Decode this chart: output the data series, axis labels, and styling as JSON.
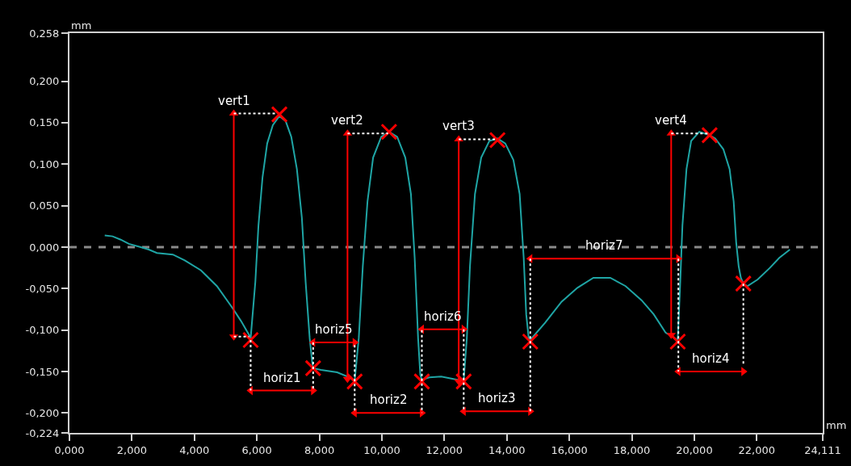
{
  "chart_data": {
    "type": "line",
    "xlabel": "mm",
    "ylabel": "mm",
    "xlim": [
      0,
      24.111
    ],
    "ylim": [
      -0.224,
      0.258
    ],
    "grid": false,
    "xticks": [
      {
        "value": 0,
        "label": "0,000"
      },
      {
        "value": 2,
        "label": "2,000"
      },
      {
        "value": 4,
        "label": "4,000"
      },
      {
        "value": 6,
        "label": "6,000"
      },
      {
        "value": 8,
        "label": "8,000"
      },
      {
        "value": 10,
        "label": "10,000"
      },
      {
        "value": 12,
        "label": "12,000"
      },
      {
        "value": 14,
        "label": "14,000"
      },
      {
        "value": 16,
        "label": "16,000"
      },
      {
        "value": 18,
        "label": "18,000"
      },
      {
        "value": 20,
        "label": "20,000"
      },
      {
        "value": 22,
        "label": "22,000"
      },
      {
        "value": 24.111,
        "label": "24,111"
      }
    ],
    "yticks": [
      {
        "value": 0.258,
        "label": "0,258"
      },
      {
        "value": 0.2,
        "label": "0,200"
      },
      {
        "value": 0.15,
        "label": "0,150"
      },
      {
        "value": 0.1,
        "label": "0,100"
      },
      {
        "value": 0.05,
        "label": "0,050"
      },
      {
        "value": 0,
        "label": "0,000"
      },
      {
        "value": -0.05,
        "label": "-0,050"
      },
      {
        "value": -0.1,
        "label": "-0,100"
      },
      {
        "value": -0.15,
        "label": "-0,150"
      },
      {
        "value": -0.2,
        "label": "-0,200"
      },
      {
        "value": -0.224,
        "label": "-0,224"
      }
    ],
    "ref_lines": [
      {
        "axis": "y",
        "value": 0,
        "color": "#8a8a8a",
        "line_style": "dashed"
      }
    ],
    "series": [
      {
        "color": "#1fa5a5",
        "marker": "none",
        "line_style": "solid",
        "x": [
          1.13,
          1.38,
          1.64,
          1.9,
          2.28,
          2.54,
          2.8,
          3.31,
          3.69,
          4.21,
          4.72,
          5.23,
          5.49,
          5.75,
          5.8,
          5.95,
          6.05,
          6.18,
          6.33,
          6.51,
          6.72,
          6.92,
          7.1,
          7.28,
          7.44,
          7.56,
          7.69,
          7.77,
          7.8,
          8.05,
          8.57,
          8.95,
          9.13,
          9.26,
          9.39,
          9.54,
          9.72,
          9.98,
          10.23,
          10.49,
          10.75,
          10.93,
          11.05,
          11.16,
          11.23,
          11.28,
          11.52,
          11.9,
          12.29,
          12.54,
          12.62,
          12.72,
          12.82,
          12.98,
          13.18,
          13.44,
          13.7,
          13.95,
          14.21,
          14.41,
          14.54,
          14.62,
          14.7,
          14.75,
          15.23,
          15.75,
          16.26,
          16.77,
          17.31,
          17.8,
          18.31,
          18.7,
          19.08,
          19.47,
          19.54,
          19.62,
          19.75,
          19.9,
          20.16,
          20.49,
          20.67,
          20.93,
          21.13,
          21.26,
          21.34,
          21.42,
          21.49,
          21.57,
          21.7,
          22.03,
          22.42,
          22.72,
          23.06
        ],
        "values": [
          0.014,
          0.013,
          0.009,
          0.004,
          0.0,
          -0.003,
          -0.007,
          -0.009,
          -0.016,
          -0.028,
          -0.047,
          -0.074,
          -0.089,
          -0.106,
          -0.11,
          -0.042,
          0.026,
          0.084,
          0.125,
          0.147,
          0.158,
          0.152,
          0.133,
          0.094,
          0.035,
          -0.042,
          -0.11,
          -0.139,
          -0.146,
          -0.148,
          -0.151,
          -0.157,
          -0.161,
          -0.11,
          -0.023,
          0.055,
          0.108,
          0.133,
          0.139,
          0.133,
          0.108,
          0.064,
          -0.013,
          -0.11,
          -0.154,
          -0.16,
          -0.157,
          -0.156,
          -0.159,
          -0.161,
          -0.16,
          -0.11,
          -0.023,
          0.064,
          0.108,
          0.128,
          0.131,
          0.125,
          0.105,
          0.064,
          -0.013,
          -0.081,
          -0.11,
          -0.112,
          -0.091,
          -0.066,
          -0.049,
          -0.037,
          -0.037,
          -0.047,
          -0.064,
          -0.081,
          -0.103,
          -0.112,
          -0.052,
          0.026,
          0.094,
          0.128,
          0.139,
          0.135,
          0.131,
          0.118,
          0.094,
          0.055,
          0.006,
          -0.023,
          -0.037,
          -0.044,
          -0.047,
          -0.039,
          -0.025,
          -0.013,
          -0.003
        ]
      },
      {
        "type": "scatter",
        "color": "#ff0000",
        "marker": "cross",
        "x": [
          5.8,
          6.72,
          7.8,
          9.13,
          10.23,
          11.28,
          12.62,
          13.7,
          14.75,
          19.47,
          20.49,
          21.57
        ],
        "values": [
          -0.112,
          0.16,
          -0.146,
          -0.162,
          0.139,
          -0.162,
          -0.162,
          0.129,
          -0.114,
          -0.114,
          0.135,
          -0.044
        ]
      },
      {
        "color": "#ff0000",
        "marker": "triangle",
        "line_style": "solid",
        "x": [
          5.26,
          5.26
        ],
        "values": [
          -0.108,
          0.161
        ]
      },
      {
        "color": "#ff0000",
        "marker": "triangle",
        "line_style": "solid",
        "x": [
          8.9,
          8.9
        ],
        "values": [
          -0.159,
          0.137
        ]
      },
      {
        "color": "#ff0000",
        "marker": "triangle",
        "line_style": "solid",
        "x": [
          12.46,
          12.46
        ],
        "values": [
          -0.162,
          0.13
        ]
      },
      {
        "color": "#ff0000",
        "marker": "triangle",
        "line_style": "solid",
        "x": [
          19.26,
          19.26
        ],
        "values": [
          -0.106,
          0.137
        ]
      },
      {
        "color": "#ff0000",
        "marker": "triangle",
        "line_style": "solid",
        "x": [
          5.8,
          7.8
        ],
        "values": [
          -0.173,
          -0.173
        ]
      },
      {
        "color": "#ff0000",
        "marker": "triangle",
        "line_style": "solid",
        "x": [
          9.13,
          11.28
        ],
        "values": [
          -0.2,
          -0.2
        ]
      },
      {
        "color": "#ff0000",
        "marker": "triangle",
        "line_style": "solid",
        "x": [
          12.62,
          14.75
        ],
        "values": [
          -0.198,
          -0.198
        ]
      },
      {
        "color": "#ff0000",
        "marker": "triangle",
        "line_style": "solid",
        "x": [
          19.49,
          21.57
        ],
        "values": [
          -0.15,
          -0.15
        ]
      },
      {
        "color": "#ff0000",
        "marker": "triangle",
        "line_style": "solid",
        "x": [
          7.8,
          9.13
        ],
        "values": [
          -0.115,
          -0.115
        ]
      },
      {
        "color": "#ff0000",
        "marker": "triangle",
        "line_style": "solid",
        "x": [
          11.28,
          12.62
        ],
        "values": [
          -0.099,
          -0.099
        ]
      },
      {
        "color": "#ff0000",
        "marker": "triangle",
        "line_style": "solid",
        "x": [
          14.75,
          19.49
        ],
        "values": [
          -0.014,
          -0.014
        ]
      },
      {
        "color": "#ffffff",
        "marker": "none",
        "line_style": "dotted",
        "x": [
          5.26,
          6.64
        ],
        "values": [
          0.161,
          0.161
        ]
      },
      {
        "color": "#ffffff",
        "marker": "none",
        "line_style": "dotted",
        "x": [
          5.26,
          5.75
        ],
        "values": [
          -0.108,
          -0.108
        ]
      },
      {
        "color": "#ffffff",
        "marker": "none",
        "line_style": "dotted",
        "x": [
          8.9,
          10.2
        ],
        "values": [
          0.137,
          0.137
        ]
      },
      {
        "color": "#ffffff",
        "marker": "none",
        "line_style": "dotted",
        "x": [
          12.46,
          13.62
        ],
        "values": [
          0.13,
          0.13
        ]
      },
      {
        "color": "#ffffff",
        "marker": "none",
        "line_style": "dotted",
        "x": [
          19.26,
          20.45
        ],
        "values": [
          0.137,
          0.137
        ]
      },
      {
        "color": "#ffffff",
        "marker": "none",
        "line_style": "dotted",
        "x": [
          5.8,
          5.8
        ],
        "values": [
          -0.112,
          -0.173
        ]
      },
      {
        "color": "#ffffff",
        "marker": "none",
        "line_style": "dotted",
        "x": [
          7.8,
          7.8
        ],
        "values": [
          -0.115,
          -0.173
        ]
      },
      {
        "color": "#ffffff",
        "marker": "none",
        "line_style": "dotted",
        "x": [
          9.13,
          9.13
        ],
        "values": [
          -0.118,
          -0.2
        ]
      },
      {
        "color": "#ffffff",
        "marker": "none",
        "line_style": "dotted",
        "x": [
          11.28,
          11.28
        ],
        "values": [
          -0.1,
          -0.2
        ]
      },
      {
        "color": "#ffffff",
        "marker": "none",
        "line_style": "dotted",
        "x": [
          12.62,
          12.62
        ],
        "values": [
          -0.099,
          -0.198
        ]
      },
      {
        "color": "#ffffff",
        "marker": "none",
        "line_style": "dotted",
        "x": [
          14.75,
          14.75
        ],
        "values": [
          -0.014,
          -0.198
        ]
      },
      {
        "color": "#ffffff",
        "marker": "none",
        "line_style": "dotted",
        "x": [
          19.49,
          19.49
        ],
        "values": [
          -0.014,
          -0.15
        ]
      },
      {
        "color": "#ffffff",
        "marker": "none",
        "line_style": "dotted",
        "x": [
          21.57,
          21.57
        ],
        "values": [
          -0.044,
          -0.142
        ]
      }
    ],
    "annotations": [
      {
        "text": "vert1",
        "x": 5.26,
        "y": 0.161
      },
      {
        "text": "vert2",
        "x": 8.9,
        "y": 0.137
      },
      {
        "text": "vert3",
        "x": 12.46,
        "y": 0.13
      },
      {
        "text": "vert4",
        "x": 19.26,
        "y": 0.137
      },
      {
        "text": "horiz1",
        "x": 6.8,
        "y": -0.173
      },
      {
        "text": "horiz2",
        "x": 10.2,
        "y": -0.2
      },
      {
        "text": "horiz3",
        "x": 13.68,
        "y": -0.198
      },
      {
        "text": "horiz4",
        "x": 20.53,
        "y": -0.15
      },
      {
        "text": "horiz5",
        "x": 8.46,
        "y": -0.115
      },
      {
        "text": "horiz6",
        "x": 11.95,
        "y": -0.099
      },
      {
        "text": "horiz7",
        "x": 17.12,
        "y": -0.014
      }
    ]
  }
}
